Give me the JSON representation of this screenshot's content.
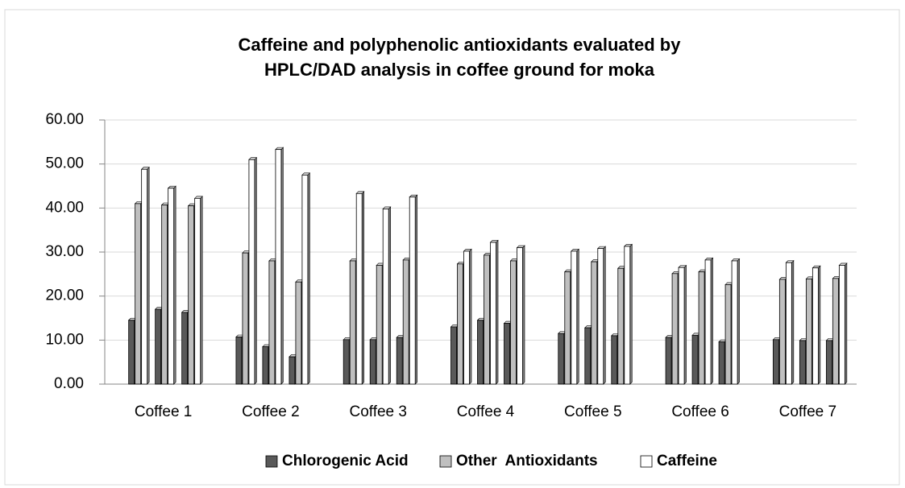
{
  "chart_data": {
    "type": "bar3d",
    "title": "Caffeine and polyphenolic antioxidants evaluated by HPLC/DAD analysis in coffee ground for moka",
    "categories": [
      null,
      "Coffee 1",
      null,
      null,
      "Coffee 2",
      null,
      null,
      "Coffee 3",
      null,
      null,
      "Coffee 4",
      null,
      null,
      "Coffee 5",
      null,
      null,
      "Coffee 6",
      null,
      null,
      "Coffee 7",
      null
    ],
    "series": [
      {
        "name": "Chlorogenic Acid",
        "color": "#595959",
        "values": [
          14.5,
          17,
          16.3,
          10.7,
          8.5,
          6.2,
          10.1,
          10.1,
          10.6,
          13,
          14.5,
          13.8,
          11.5,
          12.8,
          11,
          10.6,
          11.1,
          9.6,
          10.1,
          9.9,
          9.9
        ]
      },
      {
        "name": "Other  Antioxidants",
        "color": "#bfbfbf",
        "values": [
          41,
          40.7,
          40.5,
          29.8,
          28,
          23.2,
          28,
          27,
          28.2,
          27.3,
          29.3,
          28,
          25.5,
          27.8,
          26.3,
          25.1,
          25.5,
          22.6,
          23.8,
          23.9,
          24
        ]
      },
      {
        "name": "Caffeine",
        "color": "#ffffff",
        "values": [
          48.8,
          44.5,
          42.2,
          51,
          53.3,
          47.5,
          43.3,
          39.8,
          42.5,
          30.2,
          32.2,
          31,
          30.2,
          30.8,
          31.3,
          26.5,
          28.2,
          28,
          27.6,
          26.4,
          27
        ]
      }
    ],
    "ylim": [
      0,
      60
    ],
    "yticks": [
      {
        "value": 0,
        "label": "0.00"
      },
      {
        "value": 10,
        "label": "10.00"
      },
      {
        "value": 20,
        "label": "20.00"
      },
      {
        "value": 30,
        "label": "30.00"
      },
      {
        "value": 40,
        "label": "40.00"
      },
      {
        "value": 50,
        "label": "50.00"
      },
      {
        "value": 60,
        "label": "60.00"
      }
    ],
    "grid": true,
    "legend": "bottom"
  }
}
